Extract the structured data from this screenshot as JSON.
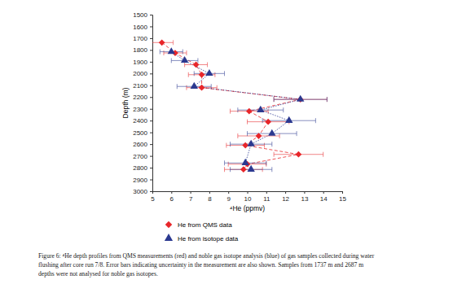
{
  "chart_data": {
    "type": "scatter",
    "x_label": "⁴He (ppmv)",
    "y_label": "Depth (m)",
    "xlim": [
      5,
      15
    ],
    "xticks": [
      5,
      6,
      7,
      8,
      9,
      10,
      11,
      12,
      13,
      14,
      15
    ],
    "ylim": [
      1500,
      3000
    ],
    "yticks": [
      1500,
      1600,
      1700,
      1800,
      1900,
      2000,
      2100,
      2200,
      2300,
      2400,
      2500,
      2600,
      2700,
      2800,
      2900,
      3000
    ],
    "series": [
      {
        "name": "He from QMS data",
        "color": "#e8262a",
        "marker": "diamond",
        "line_style": "dashed",
        "x": [
          5.5,
          6.2,
          7.3,
          7.6,
          7.6,
          12.8,
          10.1,
          11.1,
          10.6,
          9.9,
          12.7,
          10.0,
          9.8
        ],
        "values": [
          1737,
          1825,
          1925,
          2010,
          2120,
          2220,
          2320,
          2410,
          2530,
          2610,
          2687,
          2770,
          2815
        ],
        "errors": [
          0.6,
          0.6,
          0.6,
          0.7,
          0.8,
          1.4,
          1.0,
          1.1,
          1.1,
          1.0,
          1.3,
          1.0,
          1.0
        ]
      },
      {
        "name": "He from isotope data",
        "color": "#2b3990",
        "marker": "triangle",
        "line_style": "dotted",
        "x": [
          6.0,
          6.7,
          8.0,
          7.2,
          12.8,
          10.7,
          12.2,
          11.3,
          10.2,
          9.9,
          10.2
        ],
        "values": [
          1815,
          1890,
          2000,
          2110,
          2220,
          2310,
          2400,
          2510,
          2600,
          2760,
          2815
        ],
        "errors": [
          0.6,
          0.7,
          0.8,
          0.9,
          1.4,
          1.2,
          1.4,
          1.3,
          1.1,
          1.1,
          1.1
        ]
      }
    ],
    "legend": "bottom",
    "caption": [
      "Figure 6: ⁴He depth profiles from QMS measurements (red) and noble gas isotope analysis (blue) of gas samples collected during water",
      "flushing after core run 7/8. Error bars indicating uncertainty in the measurement are also shown. Samples from 1737 m and 2687 m",
      "depths were not analysed for noble gas isotopes."
    ]
  }
}
